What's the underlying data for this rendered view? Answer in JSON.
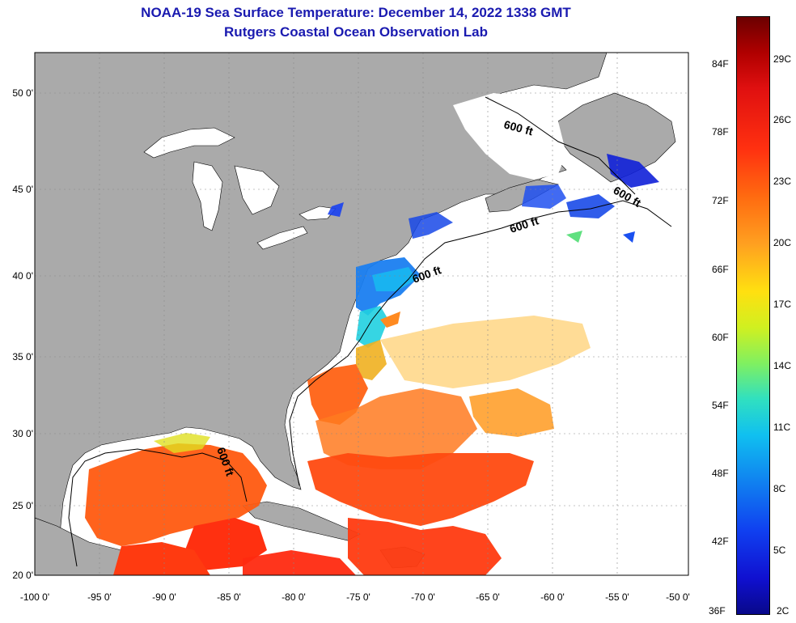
{
  "title_line1": "NOAA-19 Sea Surface Temperature:  December 14, 2022 1338 GMT",
  "title_line2": "Rutgers Coastal Ocean Observation Lab",
  "lat_labels": [
    "50 0'",
    "45 0'",
    "40 0'",
    "35 0'",
    "30 0'",
    "25 0'",
    "20 0'"
  ],
  "lon_labels": [
    "-100 0'",
    "-95 0'",
    "-90 0'",
    "-85 0'",
    "-80 0'",
    "-75 0'",
    "-70 0'",
    "-65 0'",
    "-60 0'",
    "-55 0'",
    "-50 0'"
  ],
  "contour_labels": [
    "600 ft",
    "600 ft",
    "600 ft",
    "600 ft",
    "600 ft"
  ],
  "colorbar": {
    "fahrenheit": [
      "84F",
      "78F",
      "72F",
      "66F",
      "60F",
      "54F",
      "48F",
      "42F",
      "36F"
    ],
    "celsius": [
      "29C",
      "26C",
      "23C",
      "20C",
      "17C",
      "14C",
      "11C",
      "8C",
      "5C",
      "2C"
    ]
  },
  "colors": {
    "land": "#aaaaaa",
    "title": "#1a1ab0"
  }
}
